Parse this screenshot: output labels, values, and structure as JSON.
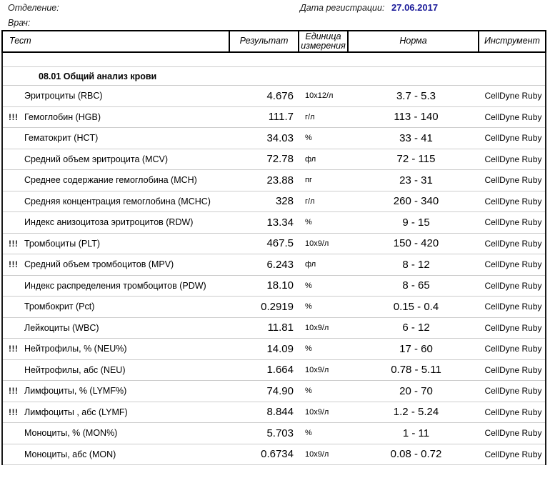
{
  "meta": {
    "department_label": "Отделение:",
    "doctor_label": "Врач:",
    "registration_date_label": "Дата регистрации:",
    "registration_date_value": "27.06.2017",
    "date_color": "#1a1a99"
  },
  "table": {
    "headers": {
      "test": "Тест",
      "result": "Результат",
      "unit": "Единица измерения",
      "norm": "Норма",
      "instrument": "Инструмент"
    },
    "section_title": "08.01 Общий анализ крови",
    "rows": [
      {
        "flag": "",
        "name": "Эритроциты (RBC)",
        "result": "4.676",
        "unit": "10x12/л",
        "norm": "3.7 - 5.3",
        "instrument": "CellDyne Ruby"
      },
      {
        "flag": "!!!",
        "name": "Гемоглобин (HGB)",
        "result": "111.7",
        "unit": "г/л",
        "norm": "113 - 140",
        "instrument": "CellDyne Ruby"
      },
      {
        "flag": "",
        "name": "Гематокрит (HCT)",
        "result": "34.03",
        "unit": "%",
        "norm": "33 - 41",
        "instrument": "CellDyne Ruby"
      },
      {
        "flag": "",
        "name": "Средний объем эритроцита (MCV)",
        "result": "72.78",
        "unit": "фл",
        "norm": "72 - 115",
        "instrument": "CellDyne Ruby"
      },
      {
        "flag": "",
        "name": "Среднее содержание гемоглобина (MCH)",
        "result": "23.88",
        "unit": "пг",
        "norm": "23 - 31",
        "instrument": "CellDyne Ruby"
      },
      {
        "flag": "",
        "name": "Средняя концентрация гемоглобина (MCHC)",
        "result": "328",
        "unit": "г/л",
        "norm": "260 - 340",
        "instrument": "CellDyne Ruby"
      },
      {
        "flag": "",
        "name": "Индекс анизоцитоза эритроцитов (RDW)",
        "result": "13.34",
        "unit": "%",
        "norm": "9 - 15",
        "instrument": "CellDyne Ruby"
      },
      {
        "flag": "!!!",
        "name": "Тромбоциты (PLT)",
        "result": "467.5",
        "unit": "10x9/л",
        "norm": "150 - 420",
        "instrument": "CellDyne Ruby"
      },
      {
        "flag": "!!!",
        "name": "Средний объем тромбоцитов (MPV)",
        "result": "6.243",
        "unit": "фл",
        "norm": "8 - 12",
        "instrument": "CellDyne Ruby"
      },
      {
        "flag": "",
        "name": "Индекс распределения тромбоцитов (PDW)",
        "result": "18.10",
        "unit": "%",
        "norm": "8 - 65",
        "instrument": "CellDyne Ruby"
      },
      {
        "flag": "",
        "name": "Тромбокрит (Pct)",
        "result": "0.2919",
        "unit": "%",
        "norm": "0.15 - 0.4",
        "instrument": "CellDyne Ruby"
      },
      {
        "flag": "",
        "name": "Лейкоциты (WBC)",
        "result": "11.81",
        "unit": "10x9/л",
        "norm": "6 - 12",
        "instrument": "CellDyne Ruby"
      },
      {
        "flag": "!!!",
        "name": "Нейтрофилы, % (NEU%)",
        "result": "14.09",
        "unit": "%",
        "norm": "17 - 60",
        "instrument": "CellDyne Ruby"
      },
      {
        "flag": "",
        "name": "Нейтрофилы, абс (NEU)",
        "result": "1.664",
        "unit": "10x9/л",
        "norm": "0.78 - 5.11",
        "instrument": "CellDyne Ruby"
      },
      {
        "flag": "!!!",
        "name": "Лимфоциты, % (LYMF%)",
        "result": "74.90",
        "unit": "%",
        "norm": "20 - 70",
        "instrument": "CellDyne Ruby"
      },
      {
        "flag": "!!!",
        "name": "Лимфоциты , абс (LYMF)",
        "result": "8.844",
        "unit": "10x9/л",
        "norm": "1.2 - 5.24",
        "instrument": "CellDyne Ruby"
      },
      {
        "flag": "",
        "name": "Моноциты, % (MON%)",
        "result": "5.703",
        "unit": "%",
        "norm": "1 - 11",
        "instrument": "CellDyne Ruby"
      },
      {
        "flag": "",
        "name": "Моноциты, абс (MON)",
        "result": "0.6734",
        "unit": "10x9/л",
        "norm": "0.08 - 0.72",
        "instrument": "CellDyne Ruby"
      }
    ]
  }
}
